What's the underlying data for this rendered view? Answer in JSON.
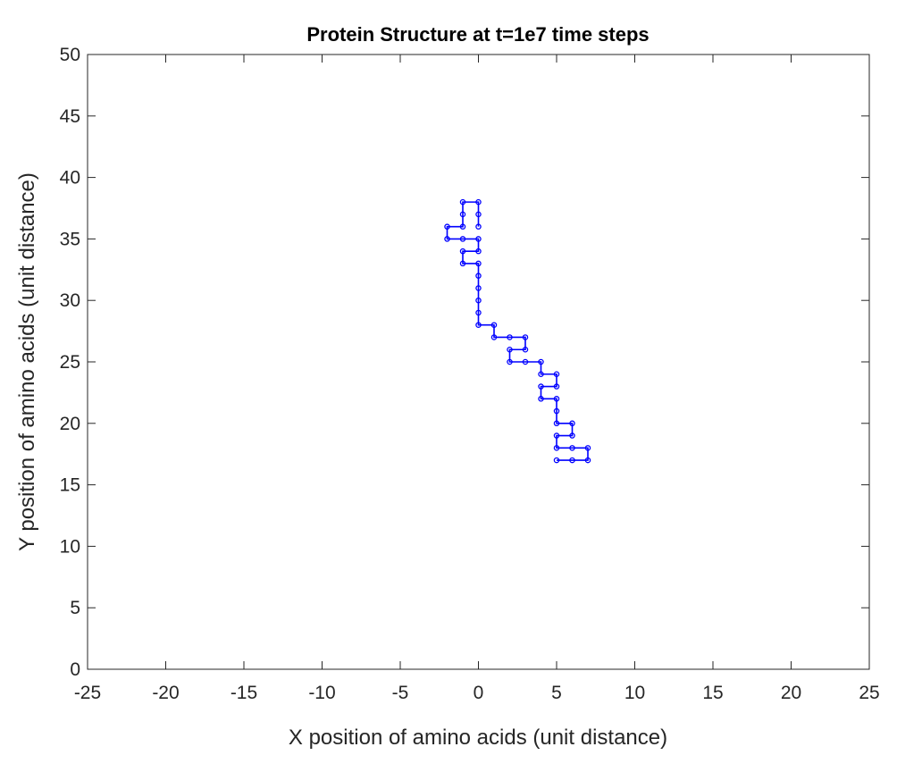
{
  "chart_data": {
    "type": "line",
    "title": "Protein Structure at t=1e7 time steps",
    "xlabel": "X position of amino acids (unit distance)",
    "ylabel": "Y position of amino acids (unit distance)",
    "xlim": [
      -25,
      25
    ],
    "ylim": [
      0,
      50
    ],
    "xticks": [
      -25,
      -20,
      -15,
      -10,
      -5,
      0,
      5,
      10,
      15,
      20,
      25
    ],
    "yticks": [
      0,
      5,
      10,
      15,
      20,
      25,
      30,
      35,
      40,
      45,
      50
    ],
    "grid": false,
    "box": true,
    "markers": "circle",
    "series": [
      {
        "color": "#0000ff",
        "points": [
          [
            0,
            36
          ],
          [
            0,
            37
          ],
          [
            0,
            38
          ],
          [
            -1,
            38
          ],
          [
            -1,
            37
          ],
          [
            -1,
            36
          ],
          [
            -2,
            36
          ],
          [
            -2,
            35
          ],
          [
            -1,
            35
          ],
          [
            0,
            35
          ],
          [
            0,
            34
          ],
          [
            -1,
            34
          ],
          [
            -1,
            33
          ],
          [
            0,
            33
          ],
          [
            0,
            32
          ],
          [
            0,
            31
          ],
          [
            0,
            30
          ],
          [
            0,
            29
          ],
          [
            0,
            28
          ],
          [
            1,
            28
          ],
          [
            1,
            27
          ],
          [
            2,
            27
          ],
          [
            3,
            27
          ],
          [
            3,
            26
          ],
          [
            2,
            26
          ],
          [
            2,
            25
          ],
          [
            3,
            25
          ],
          [
            4,
            25
          ],
          [
            4,
            24
          ],
          [
            5,
            24
          ],
          [
            5,
            23
          ],
          [
            4,
            23
          ],
          [
            4,
            22
          ],
          [
            5,
            22
          ],
          [
            5,
            21
          ],
          [
            5,
            20
          ],
          [
            6,
            20
          ],
          [
            6,
            19
          ],
          [
            5,
            19
          ],
          [
            5,
            18
          ],
          [
            6,
            18
          ],
          [
            7,
            18
          ],
          [
            7,
            17
          ],
          [
            6,
            17
          ],
          [
            5,
            17
          ]
        ]
      }
    ]
  }
}
